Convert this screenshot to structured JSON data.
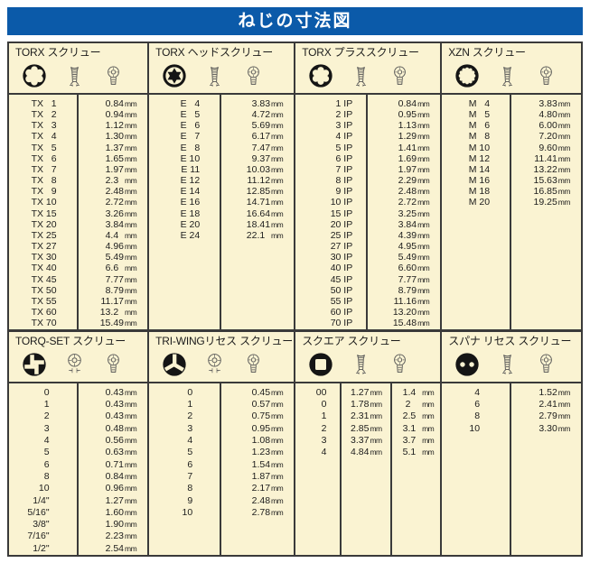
{
  "title": "ねじの寸法図",
  "unit": "mm",
  "colors": {
    "header_bg": "#0b5aa9",
    "panel_bg": "#faf3d2",
    "border": "#3a3a3a",
    "symbol": "#151515"
  },
  "sections": {
    "torx": {
      "title": "TORX スクリュー",
      "icons": [
        "torx-socket-icon",
        "screw-side-view-icon",
        "screw-head-view-icon"
      ],
      "rows": [
        [
          "TX   1",
          "0.84"
        ],
        [
          "TX   2",
          "0.94"
        ],
        [
          "TX   3",
          "1.12"
        ],
        [
          "TX   4",
          "1.30"
        ],
        [
          "TX   5",
          "1.37"
        ],
        [
          "TX   6",
          "1.65"
        ],
        [
          "TX   7",
          "1.97"
        ],
        [
          "TX   8",
          "2.3  "
        ],
        [
          "TX   9",
          "2.48"
        ],
        [
          "TX 10",
          "2.72"
        ],
        [
          "TX 15",
          "3.26"
        ],
        [
          "TX 20",
          "3.84"
        ],
        [
          "TX 25",
          "4.4  "
        ],
        [
          "TX 27",
          "4.96"
        ],
        [
          "TX 30",
          "5.49"
        ],
        [
          "TX 40",
          "6.6  "
        ],
        [
          "TX 45",
          "7.77"
        ],
        [
          "TX 50",
          "8.79"
        ],
        [
          "TX 55",
          "11.17"
        ],
        [
          "TX 60",
          "13.2  "
        ],
        [
          "TX 70",
          "15.49"
        ]
      ]
    },
    "torx_head": {
      "title": "TORX ヘッドスクリュー",
      "icons": [
        "torx-external-icon",
        "screw-side-view-icon",
        "screw-head-view-icon"
      ],
      "rows": [
        [
          "E   4",
          "3.83"
        ],
        [
          "E   5",
          "4.72"
        ],
        [
          "E   6",
          "5.69"
        ],
        [
          "E   7",
          "6.17"
        ],
        [
          "E   8",
          "7.47"
        ],
        [
          "E 10",
          "9.37"
        ],
        [
          "E 11",
          "10.03"
        ],
        [
          "E 12",
          "11.12"
        ],
        [
          "E 14",
          "12.85"
        ],
        [
          "E 16",
          "14.71"
        ],
        [
          "E 18",
          "16.64"
        ],
        [
          "E 20",
          "18.41"
        ],
        [
          "E 24",
          "22.1  "
        ]
      ]
    },
    "torx_plus": {
      "title": "TORX プラススクリュー",
      "icons": [
        "torx-plus-socket-icon",
        "screw-side-view-icon",
        "screw-head-view-icon"
      ],
      "rows": [
        [
          "  1 IP",
          "0.84"
        ],
        [
          "  2 IP",
          "0.95"
        ],
        [
          "  3 IP",
          "1.13"
        ],
        [
          "  4 IP",
          "1.29"
        ],
        [
          "  5 IP",
          "1.41"
        ],
        [
          "  6 IP",
          "1.69"
        ],
        [
          "  7 IP",
          "1.97"
        ],
        [
          "  8 IP",
          "2.29"
        ],
        [
          "  9 IP",
          "2.48"
        ],
        [
          "10 IP",
          "2.72"
        ],
        [
          "15 IP",
          "3.25"
        ],
        [
          "20 IP",
          "3.84"
        ],
        [
          "25 IP",
          "4.39"
        ],
        [
          "27 IP",
          "4.95"
        ],
        [
          "30 IP",
          "5.49"
        ],
        [
          "40 IP",
          "6.60"
        ],
        [
          "45 IP",
          "7.77"
        ],
        [
          "50 IP",
          "8.79"
        ],
        [
          "55 IP",
          "11.16"
        ],
        [
          "60 IP",
          "13.20"
        ],
        [
          "70 IP",
          "15.48"
        ]
      ]
    },
    "xzn": {
      "title": "XZN スクリュー",
      "icons": [
        "xzn-socket-icon",
        "screw-side-view-icon",
        "screw-head-view-icon"
      ],
      "rows": [
        [
          "M   4",
          "3.83"
        ],
        [
          "M   5",
          "4.80"
        ],
        [
          "M   6",
          "6.00"
        ],
        [
          "M   8",
          "7.20"
        ],
        [
          "M 10",
          "9.60"
        ],
        [
          "M 12",
          "11.41"
        ],
        [
          "M 14",
          "13.22"
        ],
        [
          "M 16",
          "15.63"
        ],
        [
          "M 18",
          "16.85"
        ],
        [
          "M 20",
          "19.25"
        ]
      ]
    },
    "torq_set": {
      "title": "TORQ-SET スクリュー",
      "icons": [
        "torq-set-socket-icon",
        "recess-front-view-icon",
        "screw-head-view-icon"
      ],
      "rows": [
        [
          "0",
          "0.43"
        ],
        [
          "1",
          "0.43"
        ],
        [
          "2",
          "0.43"
        ],
        [
          "3",
          "0.48"
        ],
        [
          "4",
          "0.56"
        ],
        [
          "5",
          "0.63"
        ],
        [
          "6",
          "0.71"
        ],
        [
          "8",
          "0.84"
        ],
        [
          "10",
          "0.96"
        ],
        [
          "1/4\"",
          "1.27"
        ],
        [
          "5/16\"",
          "1.60"
        ],
        [
          "3/8\"",
          "1.90"
        ],
        [
          "7/16\"",
          "2.23"
        ],
        [
          "1/2\"",
          "2.54"
        ]
      ]
    },
    "tri_wing": {
      "title": "TRI-WINGリセス スクリュー",
      "icons": [
        "tri-wing-socket-icon",
        "recess-front-view-icon",
        "screw-head-view-icon"
      ],
      "rows": [
        [
          "0",
          "0.45"
        ],
        [
          "1",
          "0.57"
        ],
        [
          "2",
          "0.75"
        ],
        [
          "3",
          "0.95"
        ],
        [
          "4",
          "1.08"
        ],
        [
          "5",
          "1.23"
        ],
        [
          "6",
          "1.54"
        ],
        [
          "7",
          "1.87"
        ],
        [
          "8",
          "2.17"
        ],
        [
          "9",
          "2.48"
        ],
        [
          "10",
          "2.78"
        ]
      ]
    },
    "square": {
      "title": "スクエア スクリュー",
      "icons": [
        "square-socket-icon",
        "screw-side-view-icon",
        "screw-head-view-icon"
      ],
      "rows": [
        [
          "00",
          "1.27",
          "1.4  "
        ],
        [
          "  0",
          "1.78",
          "2    "
        ],
        [
          "  1",
          "2.31",
          "2.5  "
        ],
        [
          "  2",
          "2.85",
          "3.1  "
        ],
        [
          "  3",
          "3.37",
          "3.7  "
        ],
        [
          "  4",
          "4.84",
          "5.1  "
        ]
      ]
    },
    "spanner": {
      "title": "スパナ リセス スクリュー",
      "icons": [
        "spanner-socket-icon",
        "screw-side-view-icon",
        "screw-head-view-icon"
      ],
      "rows": [
        [
          "  4",
          "1.52"
        ],
        [
          "  6",
          "2.41"
        ],
        [
          "  8",
          "2.79"
        ],
        [
          "10",
          "3.30"
        ]
      ]
    }
  }
}
